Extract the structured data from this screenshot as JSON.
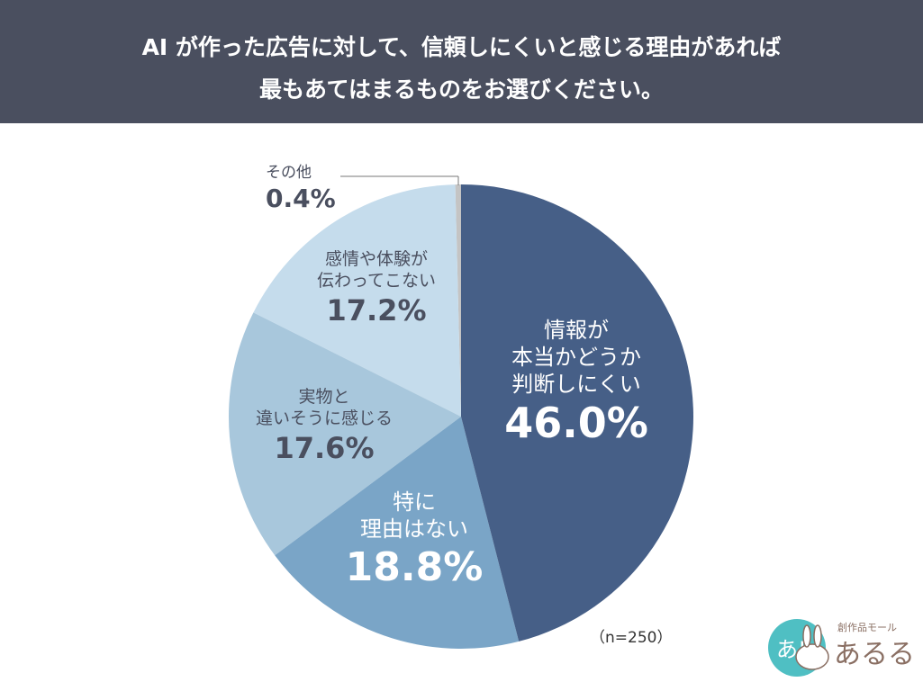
{
  "header": {
    "line1": "AI が作った広告に対して、信頼しにくいと感じる理由があれば",
    "line2": "最もあてはまるものをお選びください。"
  },
  "chart_data": {
    "type": "pie",
    "title": "AI が作った広告に対して、信頼しにくいと感じる理由があれば最もあてはまるものをお選びください。",
    "categories": [
      "情報が本当かどうか判断しにくい",
      "特に理由はない",
      "実物と違いそうに感じる",
      "感情や体験が伝わってこない",
      "その他"
    ],
    "values": [
      46.0,
      18.8,
      17.6,
      17.2,
      0.4
    ],
    "colors": [
      "#465f87",
      "#7aa5c7",
      "#a8c7dc",
      "#c5dcec",
      "#c4c4c4"
    ],
    "labels": [
      {
        "lines": [
          "情報が",
          "本当かどうか",
          "判断しにくい"
        ],
        "pct": "46.0%"
      },
      {
        "lines": [
          "特に",
          "理由はない"
        ],
        "pct": "18.8%"
      },
      {
        "lines": [
          "実物と",
          "違いそうに感じる"
        ],
        "pct": "17.6%"
      },
      {
        "lines": [
          "感情や体験が",
          "伝わってこない"
        ],
        "pct": "17.2%"
      },
      {
        "lines": [
          "その他"
        ],
        "pct": "0.4%"
      }
    ],
    "start": "top",
    "direction": "clockwise"
  },
  "note": "（n=250）",
  "logo": {
    "text": "創作品モール あるる",
    "mark": "あ!"
  }
}
